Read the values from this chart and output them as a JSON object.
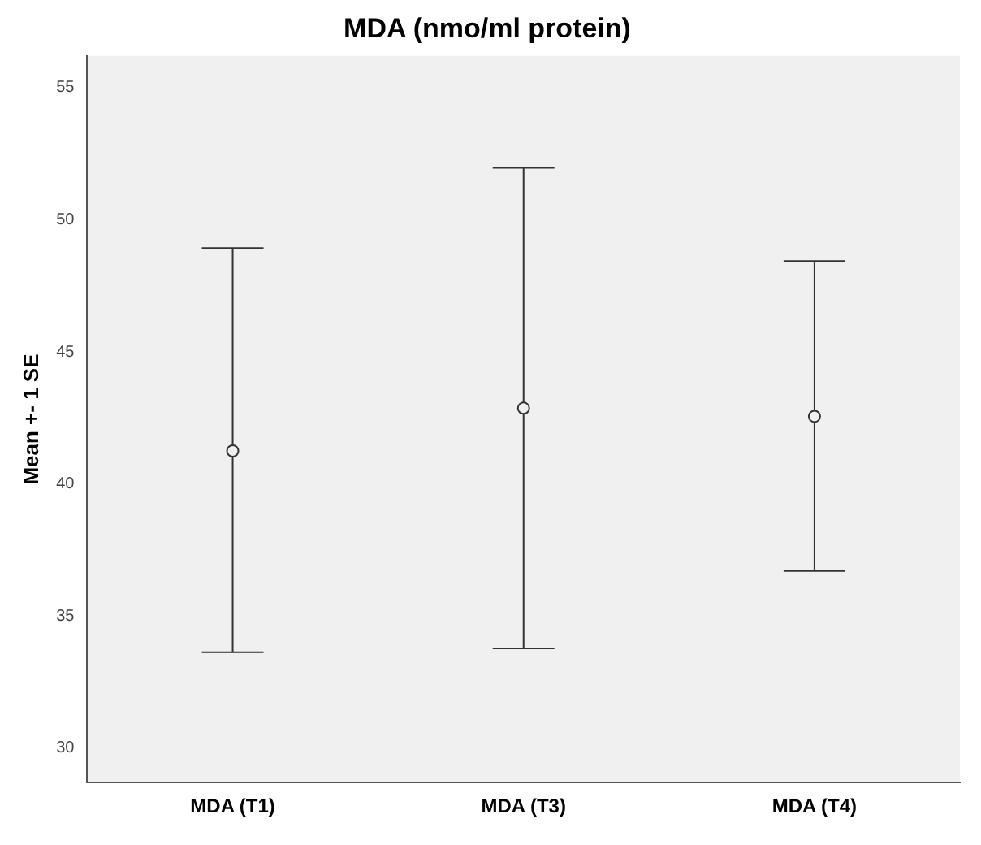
{
  "chart_data": {
    "type": "scatter",
    "title": "MDA (nmo/ml protein)",
    "ylabel": "Mean +- 1 SE",
    "categories": [
      "MDA (T1)",
      "MDA (T3)",
      "MDA (T4)"
    ],
    "series": [
      {
        "color": "#333333",
        "values": [
          41.25,
          42.87,
          42.56
        ],
        "errors": [
          [
            33.63,
            48.93
          ],
          [
            33.78,
            51.97
          ],
          [
            36.71,
            48.44
          ]
        ]
      }
    ],
    "ylim": [
      28.7,
      56.2
    ],
    "yticks": [
      30,
      35,
      40,
      45,
      50,
      55
    ],
    "grid": false,
    "legend": false,
    "marker": "circle"
  }
}
